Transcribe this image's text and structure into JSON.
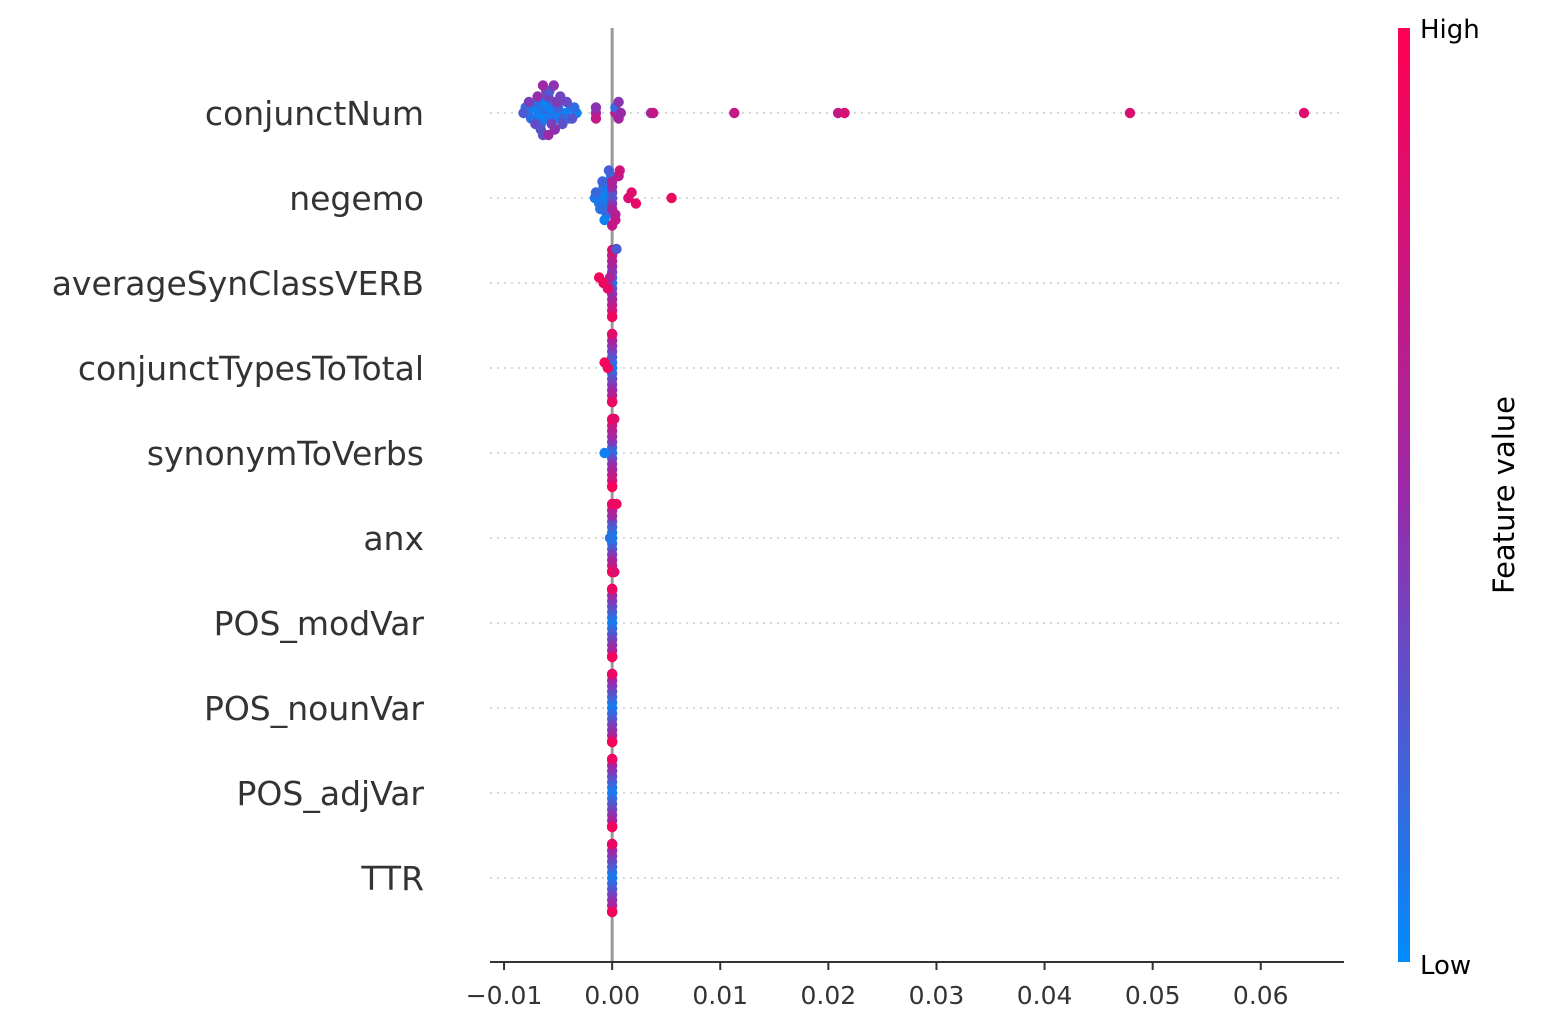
{
  "chart_data": {
    "type": "scatter",
    "subtype": "beeswarm",
    "title": "",
    "xlabel": "",
    "ylabel": "",
    "xlim": [
      -0.0113,
      0.0677
    ],
    "x_ticks": [
      -0.01,
      0.0,
      0.01,
      0.02,
      0.03,
      0.04,
      0.05,
      0.06
    ],
    "x_tick_labels": [
      "−0.01",
      "0.00",
      "0.01",
      "0.02",
      "0.03",
      "0.04",
      "0.05",
      "0.06"
    ],
    "grid": false,
    "colorbar": {
      "title": "Feature value",
      "high_label": "High",
      "low_label": "Low",
      "high_color": "#ff0052",
      "mid_color": "#9a2aa8",
      "low_color": "#008bfb"
    },
    "features": [
      {
        "name": "conjunctNum",
        "points": [
          [
            -0.0062,
            0.2
          ],
          [
            -0.0065,
            0.15
          ],
          [
            -0.0068,
            0.1
          ],
          [
            -0.0061,
            0.08
          ],
          [
            -0.0057,
            0.1
          ],
          [
            -0.0078,
            0.08
          ],
          [
            -0.0073,
            0.05
          ],
          [
            -0.0068,
            0.03
          ],
          [
            -0.0063,
            0.02
          ],
          [
            -0.0058,
            0.05
          ],
          [
            -0.0053,
            0.08
          ],
          [
            -0.0048,
            0.06
          ],
          [
            -0.0043,
            0.04
          ],
          [
            -0.0038,
            0.06
          ],
          [
            -0.0033,
            0.05
          ],
          [
            -0.008,
            0.15
          ],
          [
            -0.0075,
            0.12
          ],
          [
            -0.007,
            0.14
          ],
          [
            -0.0066,
            0.1
          ],
          [
            -0.006,
            0.15
          ],
          [
            -0.0055,
            0.18
          ],
          [
            -0.005,
            0.2
          ],
          [
            -0.0045,
            0.22
          ],
          [
            -0.004,
            0.12
          ],
          [
            -0.0035,
            0.15
          ],
          [
            -0.0082,
            0.25
          ],
          [
            -0.0077,
            0.4
          ],
          [
            -0.0071,
            0.32
          ],
          [
            -0.0066,
            0.28
          ],
          [
            -0.0061,
            0.35
          ],
          [
            -0.0056,
            0.38
          ],
          [
            -0.0051,
            0.42
          ],
          [
            -0.0046,
            0.3
          ],
          [
            -0.0042,
            0.33
          ],
          [
            -0.0037,
            0.28
          ],
          [
            -0.0064,
            0.3
          ],
          [
            -0.0059,
            0.38
          ],
          [
            -0.0053,
            0.45
          ],
          [
            -0.0048,
            0.36
          ],
          [
            -0.0058,
            0.26
          ],
          [
            -0.0069,
            0.48
          ],
          [
            -0.0064,
            0.52
          ],
          [
            -0.0059,
            0.5
          ],
          [
            -0.0054,
            0.46
          ],
          [
            -0.0015,
            0.55
          ],
          [
            -0.0015,
            0.45
          ],
          [
            -0.0015,
            0.7
          ],
          [
            0.0003,
            0.62
          ],
          [
            0.0003,
            0.15
          ],
          [
            0.0006,
            0.55
          ],
          [
            0.0006,
            0.45
          ],
          [
            0.0008,
            0.5
          ],
          [
            0.0036,
            0.5
          ],
          [
            0.0038,
            0.7
          ],
          [
            0.0113,
            0.7
          ],
          [
            0.0209,
            0.7
          ],
          [
            0.0215,
            0.8
          ],
          [
            0.0479,
            0.8
          ],
          [
            0.064,
            0.85
          ]
        ]
      },
      {
        "name": "negemo",
        "points": [
          [
            -0.0014,
            0.05
          ],
          [
            -0.001,
            0.05
          ],
          [
            -0.0006,
            0.06
          ],
          [
            -0.0002,
            0.05
          ],
          [
            -0.0016,
            0.08
          ],
          [
            -0.0012,
            0.1
          ],
          [
            -0.0008,
            0.1
          ],
          [
            -0.0004,
            0.08
          ],
          [
            -0.0001,
            0.06
          ],
          [
            -0.0015,
            0.18
          ],
          [
            -0.0011,
            0.12
          ],
          [
            -0.0007,
            0.15
          ],
          [
            -0.0003,
            0.12
          ],
          [
            -0.0009,
            0.2
          ],
          [
            -0.0005,
            0.18
          ],
          [
            -0.0001,
            0.1
          ],
          [
            -0.0007,
            0.05
          ],
          [
            -0.0003,
            0.22
          ],
          [
            0.0,
            0.25
          ],
          [
            0.0,
            0.3
          ],
          [
            0.0,
            0.4
          ],
          [
            0.0,
            0.5
          ],
          [
            0.0,
            0.55
          ],
          [
            0.0,
            0.6
          ],
          [
            0.0003,
            0.62
          ],
          [
            0.0006,
            0.65
          ],
          [
            0.0003,
            0.7
          ],
          [
            0.0007,
            0.75
          ],
          [
            0.0015,
            0.82
          ],
          [
            0.0018,
            0.85
          ],
          [
            0.0022,
            0.88
          ],
          [
            0.0055,
            0.9
          ],
          [
            0.0,
            0.7
          ]
        ]
      },
      {
        "name": "averageSynClassVERB",
        "points": [
          [
            0.0,
            0.1
          ],
          [
            0.0,
            0.2
          ],
          [
            0.0,
            0.3
          ],
          [
            0.0,
            0.4
          ],
          [
            0.0,
            0.45
          ],
          [
            0.0,
            0.5
          ],
          [
            0.0,
            0.55
          ],
          [
            0.0,
            0.6
          ],
          [
            0.0,
            0.65
          ],
          [
            0.0,
            0.7
          ],
          [
            0.0,
            0.75
          ],
          [
            0.0,
            0.8
          ],
          [
            0.0,
            0.85
          ],
          [
            0.0004,
            0.25
          ],
          [
            -0.0004,
            0.35
          ],
          [
            -0.0002,
            0.6
          ],
          [
            -0.0008,
            0.92
          ],
          [
            -0.0012,
            0.95
          ],
          [
            -0.0004,
            0.88
          ],
          [
            0.0,
            0.92
          ]
        ]
      },
      {
        "name": "conjunctTypesToTotal",
        "points": [
          [
            0.0,
            0.1
          ],
          [
            0.0,
            0.15
          ],
          [
            0.0,
            0.2
          ],
          [
            0.0,
            0.25
          ],
          [
            0.0,
            0.3
          ],
          [
            0.0,
            0.35
          ],
          [
            0.0,
            0.4
          ],
          [
            0.0,
            0.45
          ],
          [
            0.0,
            0.5
          ],
          [
            0.0,
            0.55
          ],
          [
            0.0,
            0.6
          ],
          [
            0.0,
            0.65
          ],
          [
            0.0,
            0.7
          ],
          [
            0.0,
            0.75
          ],
          [
            0.0,
            0.8
          ],
          [
            0.0,
            0.85
          ],
          [
            0.0,
            0.9
          ],
          [
            -0.0004,
            0.92
          ],
          [
            -0.0007,
            0.95
          ]
        ]
      },
      {
        "name": "synonymToVerbs",
        "points": [
          [
            0.0,
            0.1
          ],
          [
            0.0,
            0.2
          ],
          [
            0.0,
            0.3
          ],
          [
            0.0,
            0.4
          ],
          [
            0.0,
            0.45
          ],
          [
            0.0,
            0.5
          ],
          [
            0.0,
            0.55
          ],
          [
            0.0,
            0.6
          ],
          [
            0.0,
            0.65
          ],
          [
            0.0,
            0.7
          ],
          [
            0.0,
            0.75
          ],
          [
            0.0,
            0.8
          ],
          [
            0.0,
            0.85
          ],
          [
            0.0,
            0.9
          ],
          [
            0.0,
            0.95
          ],
          [
            -0.0007,
            0.05
          ],
          [
            0.0002,
            0.85
          ]
        ]
      },
      {
        "name": "anx",
        "points": [
          [
            0.0,
            0.05
          ],
          [
            0.0,
            0.1
          ],
          [
            0.0,
            0.15
          ],
          [
            0.0,
            0.2
          ],
          [
            0.0,
            0.25
          ],
          [
            0.0,
            0.3
          ],
          [
            0.0,
            0.4
          ],
          [
            0.0,
            0.5
          ],
          [
            0.0,
            0.55
          ],
          [
            0.0,
            0.6
          ],
          [
            0.0,
            0.65
          ],
          [
            0.0,
            0.7
          ],
          [
            0.0,
            0.75
          ],
          [
            0.0,
            0.8
          ],
          [
            0.0,
            0.85
          ],
          [
            0.0,
            0.9
          ],
          [
            0.0,
            0.95
          ],
          [
            -0.0002,
            0.12
          ],
          [
            0.0004,
            0.92
          ],
          [
            0.0002,
            0.85
          ]
        ]
      },
      {
        "name": "POS_modVar",
        "points": [
          [
            0.0,
            0.05
          ],
          [
            0.0,
            0.1
          ],
          [
            0.0,
            0.15
          ],
          [
            0.0,
            0.2
          ],
          [
            0.0,
            0.25
          ],
          [
            0.0,
            0.3
          ],
          [
            0.0,
            0.35
          ],
          [
            0.0,
            0.4
          ],
          [
            0.0,
            0.45
          ],
          [
            0.0,
            0.5
          ],
          [
            0.0,
            0.55
          ],
          [
            0.0,
            0.6
          ],
          [
            0.0,
            0.65
          ],
          [
            0.0,
            0.7
          ],
          [
            0.0,
            0.75
          ],
          [
            0.0,
            0.8
          ],
          [
            0.0,
            0.85
          ],
          [
            0.0,
            0.9
          ],
          [
            0.0,
            0.95
          ]
        ]
      },
      {
        "name": "POS_nounVar",
        "points": [
          [
            0.0,
            0.05
          ],
          [
            0.0,
            0.1
          ],
          [
            0.0,
            0.15
          ],
          [
            0.0,
            0.2
          ],
          [
            0.0,
            0.25
          ],
          [
            0.0,
            0.3
          ],
          [
            0.0,
            0.35
          ],
          [
            0.0,
            0.4
          ],
          [
            0.0,
            0.45
          ],
          [
            0.0,
            0.5
          ],
          [
            0.0,
            0.55
          ],
          [
            0.0,
            0.6
          ],
          [
            0.0,
            0.65
          ],
          [
            0.0,
            0.7
          ],
          [
            0.0,
            0.75
          ],
          [
            0.0,
            0.8
          ],
          [
            0.0,
            0.85
          ],
          [
            0.0,
            0.9
          ],
          [
            0.0,
            0.95
          ]
        ]
      },
      {
        "name": "POS_adjVar",
        "points": [
          [
            0.0,
            0.05
          ],
          [
            0.0,
            0.1
          ],
          [
            0.0,
            0.15
          ],
          [
            0.0,
            0.2
          ],
          [
            0.0,
            0.25
          ],
          [
            0.0,
            0.3
          ],
          [
            0.0,
            0.35
          ],
          [
            0.0,
            0.4
          ],
          [
            0.0,
            0.45
          ],
          [
            0.0,
            0.5
          ],
          [
            0.0,
            0.55
          ],
          [
            0.0,
            0.6
          ],
          [
            0.0,
            0.65
          ],
          [
            0.0,
            0.7
          ],
          [
            0.0,
            0.75
          ],
          [
            0.0,
            0.8
          ],
          [
            0.0,
            0.85
          ],
          [
            0.0,
            0.9
          ],
          [
            0.0,
            0.95
          ]
        ]
      },
      {
        "name": "TTR",
        "points": [
          [
            0.0,
            0.05
          ],
          [
            0.0,
            0.1
          ],
          [
            0.0,
            0.15
          ],
          [
            0.0,
            0.2
          ],
          [
            0.0,
            0.25
          ],
          [
            0.0,
            0.3
          ],
          [
            0.0,
            0.35
          ],
          [
            0.0,
            0.4
          ],
          [
            0.0,
            0.45
          ],
          [
            0.0,
            0.5
          ],
          [
            0.0,
            0.55
          ],
          [
            0.0,
            0.6
          ],
          [
            0.0,
            0.65
          ],
          [
            0.0,
            0.7
          ],
          [
            0.0,
            0.75
          ],
          [
            0.0,
            0.8
          ],
          [
            0.0,
            0.85
          ],
          [
            0.0,
            0.9
          ],
          [
            0.0,
            0.95
          ]
        ]
      }
    ]
  }
}
